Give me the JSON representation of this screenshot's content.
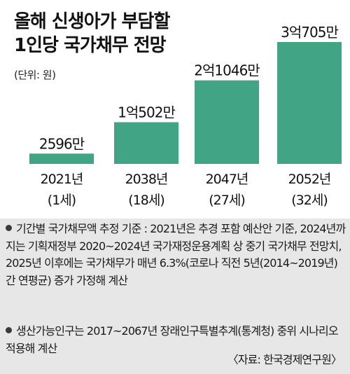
{
  "title_lines": [
    "올해 신생아가 부담할",
    "1인당 국가채무 전망"
  ],
  "unit": "(단위: 원)",
  "chart_data": {
    "type": "bar",
    "title": "올해 신생아가 부담할 1인당 국가채무 전망",
    "unit": "(단위: 원)",
    "categories": [
      "2021년",
      "2038년",
      "2047년",
      "2052년"
    ],
    "sub_labels": [
      "(1세)",
      "(18세)",
      "(27세)",
      "(32세)"
    ],
    "values": [
      25960000,
      105020000,
      210460000,
      307050000
    ],
    "value_labels": [
      "2596만",
      "1억502만",
      "2억1046만",
      "3억705만"
    ],
    "bar_color": "#41a585",
    "ylim": [
      0,
      307050000
    ]
  },
  "notes": [
    "기간별 국가채무액 추정 기준 : 2021년은 추경 포함 예산안 기준, 2024년까지는 기획재정부 2020~2024년 국가재정운용계획 상 중기 국가채무 전망치, 2025년 이후에는 국가채무가 매년 6.3%(코로나 직전 5년(2014~2019년) 간 연평균) 증가 가정해 계산",
    "생산가능인구는 2017~2067년 장래인구특별추계(통계청) 중위 시나리오 적용해 계산"
  ],
  "source": "〈자료: 한국경제연구원〉",
  "notes_bg": "#e7e7e7"
}
